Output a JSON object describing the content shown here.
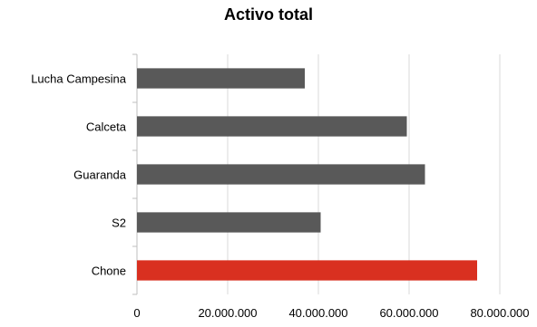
{
  "chart_data": {
    "type": "bar",
    "orientation": "horizontal",
    "title": "Activo total",
    "categories": [
      "Lucha Campesina",
      "Calceta",
      "Guaranda",
      "S2",
      "Chone"
    ],
    "values": [
      37000000,
      59500000,
      63500000,
      40500000,
      75000000
    ],
    "xlabel": "",
    "ylabel": "",
    "xlim": [
      0,
      80000000
    ],
    "ticks": [
      0,
      20000000,
      40000000,
      60000000,
      80000000
    ],
    "tick_labels": [
      "0",
      "20.000.000",
      "40.000.000",
      "60.000.000",
      "80.000.000"
    ],
    "grid": true,
    "legend": "none",
    "colors": {
      "default_bar": "#595959",
      "highlight_bar": "#d93020",
      "grid": "#d9d9d9",
      "axis": "#bfbfbf"
    },
    "highlight_category": "Chone"
  }
}
